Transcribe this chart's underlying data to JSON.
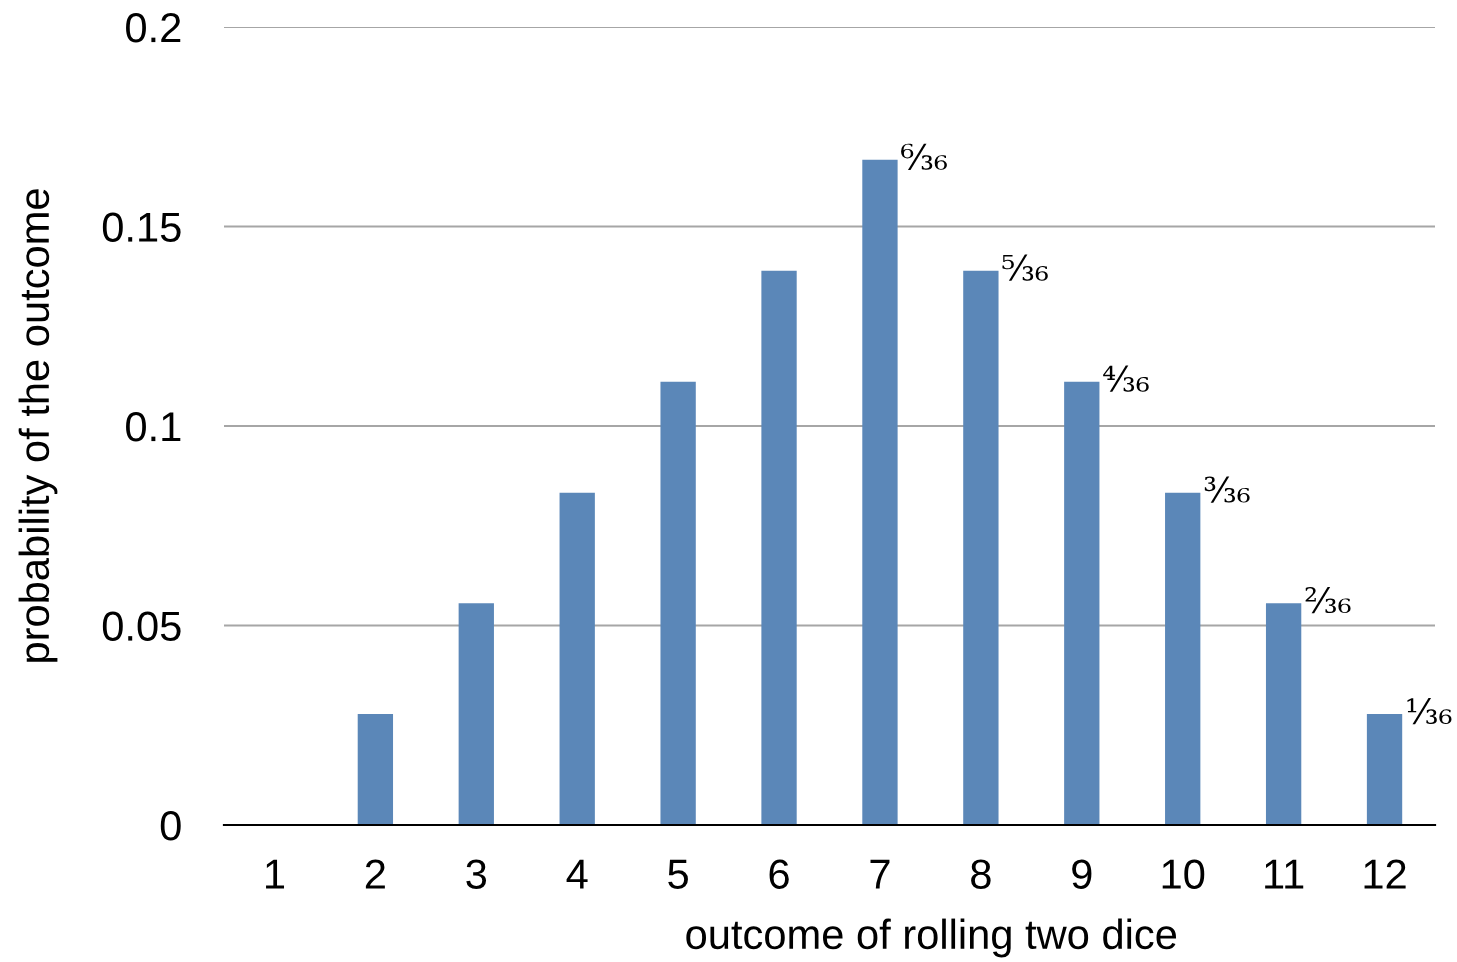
{
  "chart_data": {
    "type": "bar",
    "categories": [
      "1",
      "2",
      "3",
      "4",
      "5",
      "6",
      "7",
      "8",
      "9",
      "10",
      "11",
      "12"
    ],
    "values": [
      0,
      0.0278,
      0.0556,
      0.0833,
      0.1111,
      0.1389,
      0.1667,
      0.1389,
      0.1111,
      0.0833,
      0.0556,
      0.0278
    ],
    "color": "#5b87b8",
    "value_labels": [
      null,
      null,
      null,
      null,
      null,
      null,
      "⁶⁄₃₆",
      "⁵⁄₃₆",
      "⁴⁄₃₆",
      "³⁄₃₆",
      "²⁄₃₆",
      "¹⁄₃₆"
    ],
    "xlabel": "outcome of rolling two dice",
    "ylabel": "probability of the outcome",
    "ylim": [
      0,
      0.2
    ],
    "yticks": [
      0,
      0.05,
      0.1,
      0.15,
      0.2
    ],
    "grid": "y"
  }
}
